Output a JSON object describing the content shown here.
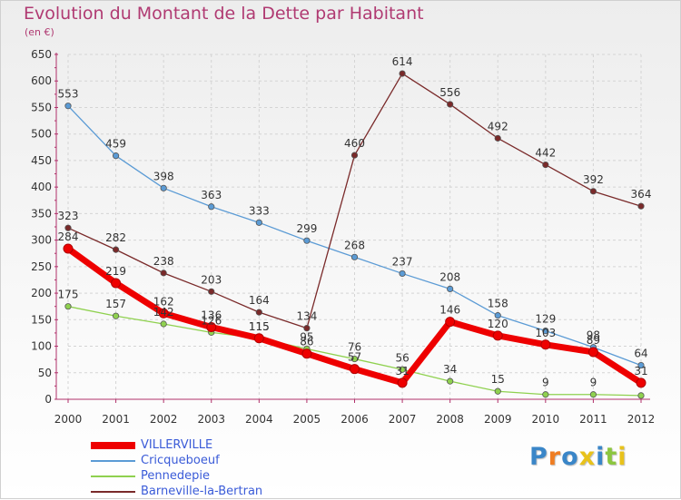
{
  "chart_data": {
    "type": "line",
    "title": "Evolution du Montant de la Dette par Habitant",
    "subtitle": "(en €)",
    "x": [
      "2000",
      "2001",
      "2002",
      "2003",
      "2004",
      "2005",
      "2006",
      "2007",
      "2008",
      "2009",
      "2010",
      "2011",
      "2012"
    ],
    "ylim": [
      0,
      650
    ],
    "yticks": [
      0,
      50,
      100,
      150,
      200,
      250,
      300,
      350,
      400,
      450,
      500,
      550,
      600,
      650
    ],
    "grid": true,
    "legend_position": "bottom-left",
    "series": [
      {
        "name": "VILLERVILLE",
        "color": "#ee0000",
        "values": [
          284,
          219,
          162,
          136,
          115,
          86,
          57,
          31,
          146,
          120,
          103,
          89,
          31
        ],
        "labels": [
          "284",
          "219",
          "162",
          "136",
          "115",
          "86",
          "57",
          "31",
          "146",
          "120",
          "103",
          "89",
          "31"
        ]
      },
      {
        "name": "Cricqueboeuf",
        "color": "#5b9bd5",
        "values": [
          553,
          459,
          398,
          363,
          333,
          299,
          268,
          237,
          208,
          158,
          129,
          98,
          64
        ],
        "labels": [
          "553",
          "459",
          "398",
          "363",
          "333",
          "299",
          "268",
          "237",
          "208",
          "158",
          "129",
          "98",
          "64"
        ]
      },
      {
        "name": "Pennedepie",
        "color": "#8fd14f",
        "values": [
          175,
          157,
          142,
          126,
          115,
          95,
          76,
          56,
          34,
          15,
          9,
          9,
          7
        ],
        "labels": [
          "175",
          "157",
          "142",
          "126",
          "115",
          "95",
          "76",
          "56",
          "34",
          "15",
          "9",
          "9",
          ""
        ]
      },
      {
        "name": "Barneville-la-Bertran",
        "color": "#7a2a2a",
        "values": [
          323,
          282,
          238,
          203,
          164,
          134,
          460,
          614,
          556,
          492,
          442,
          392,
          364
        ],
        "labels": [
          "323",
          "282",
          "238",
          "203",
          "164",
          "134",
          "460",
          "614",
          "556",
          "492",
          "442",
          "392",
          "364"
        ]
      }
    ]
  },
  "logo": {
    "text": "Proxiti",
    "colors": [
      "#3a86c8",
      "#ef7d22",
      "#3a86c8",
      "#e8c21b",
      "#3a86c8",
      "#8cc63f",
      "#e8c21b"
    ]
  }
}
